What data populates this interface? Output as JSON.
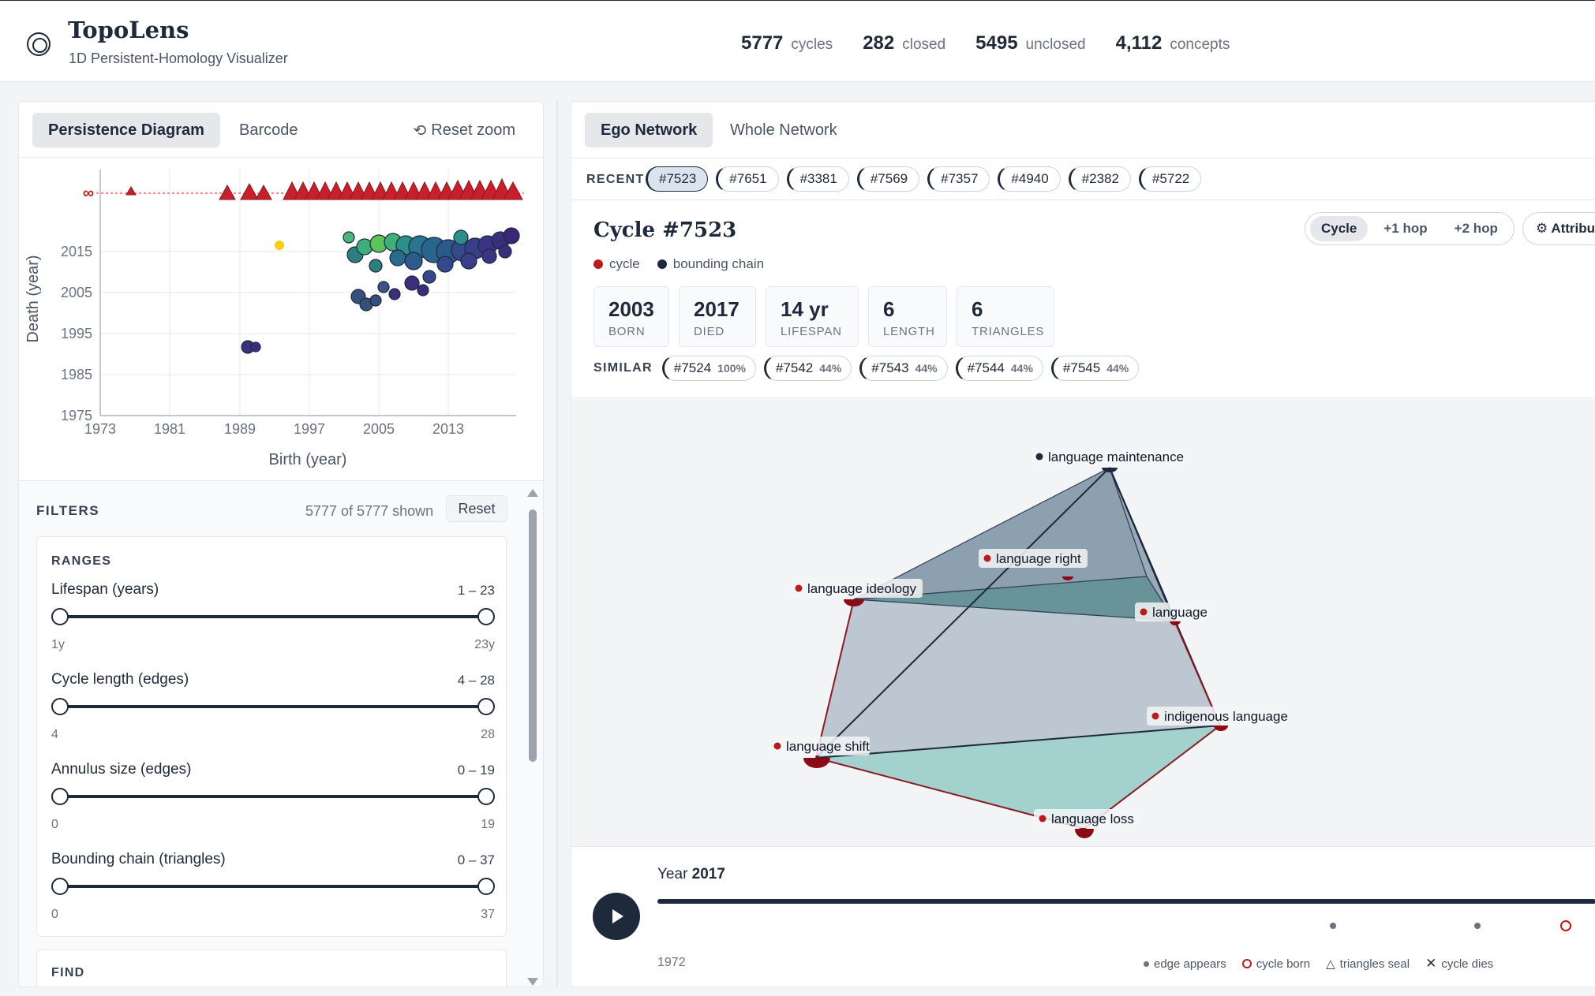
{
  "header": {
    "title": "TopoLens",
    "subtitle": "1D Persistent-Homology Visualizer",
    "stats": [
      {
        "value": "5777",
        "label": "cycles"
      },
      {
        "value": "282",
        "label": "closed"
      },
      {
        "value": "5495",
        "label": "unclosed"
      },
      {
        "value": "4,112",
        "label": "concepts"
      }
    ]
  },
  "left": {
    "tabs": [
      "Persistence Diagram",
      "Barcode"
    ],
    "reset_zoom": "Reset zoom",
    "plot": {
      "xlabel": "Birth (year)",
      "ylabel": "Death (year)",
      "x_ticks": [
        "1973",
        "1981",
        "1989",
        "1997",
        "2005",
        "2013"
      ],
      "y_ticks": [
        "2015",
        "2005",
        "1995",
        "1985",
        "1975"
      ],
      "inf_label": "∞"
    },
    "filters": {
      "title": "FILTERS",
      "count": "5777 of 5777 shown",
      "reset": "Reset",
      "ranges_title": "RANGES",
      "ranges": [
        {
          "label": "Lifespan (years)",
          "value": "1 – 23",
          "min": "1y",
          "max": "23y"
        },
        {
          "label": "Cycle length (edges)",
          "value": "4 – 28",
          "min": "4",
          "max": "28"
        },
        {
          "label": "Annulus size (edges)",
          "value": "0 – 19",
          "min": "0",
          "max": "19"
        },
        {
          "label": "Bounding chain (triangles)",
          "value": "0 – 37",
          "min": "0",
          "max": "37"
        }
      ],
      "find_title": "FIND"
    }
  },
  "right": {
    "tabs": [
      "Ego Network",
      "Whole Network"
    ],
    "recent_label": "RECENT",
    "recent": [
      "#7523",
      "#7651",
      "#3381",
      "#7569",
      "#7357",
      "#4940",
      "#2382",
      "#5722"
    ],
    "cycle_title": "Cycle #7523",
    "legend": [
      {
        "label": "cycle",
        "color": "#b91c1c"
      },
      {
        "label": "bounding chain",
        "color": "#1e293b"
      }
    ],
    "hops": [
      "Cycle",
      "+1 hop",
      "+2 hop"
    ],
    "attributes": "⚙ Attribu",
    "metrics": [
      {
        "value": "2003",
        "label": "BORN"
      },
      {
        "value": "2017",
        "label": "DIED"
      },
      {
        "value": "14 yr",
        "label": "LIFESPAN"
      },
      {
        "value": "6",
        "label": "LENGTH"
      },
      {
        "value": "6",
        "label": "TRIANGLES"
      }
    ],
    "similar_label": "SIMILAR",
    "similar": [
      {
        "id": "#7524",
        "pct": "100%"
      },
      {
        "id": "#7542",
        "pct": "44%"
      },
      {
        "id": "#7543",
        "pct": "44%"
      },
      {
        "id": "#7544",
        "pct": "44%"
      },
      {
        "id": "#7545",
        "pct": "44%"
      }
    ],
    "nodes": {
      "maintenance": "language maintenance",
      "right": "language right",
      "ideology": "language ideology",
      "language": "language",
      "indigenous": "indigenous language",
      "shift": "language shift",
      "loss": "language loss"
    },
    "timeline": {
      "year_prefix": "Year",
      "year": "2017",
      "start": "1972",
      "legend": [
        "edge appears",
        "cycle born",
        "triangles seal",
        "cycle dies"
      ]
    }
  },
  "colors": {
    "accent": "#1e293b",
    "cycle": "#b91c1c",
    "triangle_blue": "#7f95a8",
    "triangle_teal": "#8ccbc4"
  }
}
